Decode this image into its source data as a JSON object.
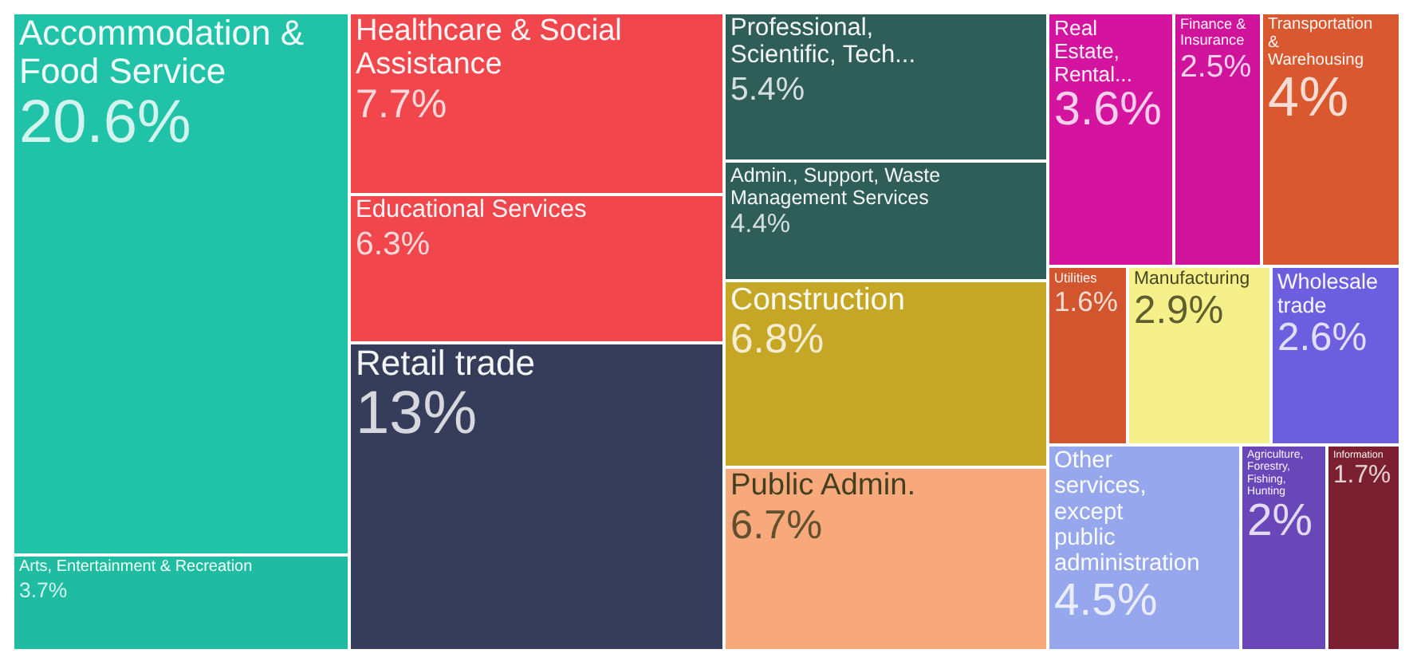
{
  "chart_data": {
    "type": "other",
    "categories": [
      "Accommodation & Food Service",
      "Arts, Entertainment & Recreation",
      "Healthcare & Social Assistance",
      "Educational Services",
      "Retail trade",
      "Professional, Scientific, Tech...",
      "Admin., Support, Waste Management Services",
      "Construction",
      "Public Admin.",
      "Real Estate, Rental...",
      "Finance & Insurance",
      "Transportation & Warehousing",
      "Utilities",
      "Manufacturing",
      "Wholesale trade",
      "Other services, except public administration",
      "Agriculture, Forestry, Fishing, Hunting",
      "Information"
    ],
    "values": [
      20.6,
      3.7,
      7.7,
      6.3,
      13,
      5.4,
      4.4,
      6.8,
      6.7,
      3.6,
      2.5,
      4,
      1.6,
      2.9,
      2.6,
      4.5,
      2,
      1.7
    ],
    "value_labels": [
      "20.6%",
      "3.7%",
      "7.7%",
      "6.3%",
      "13%",
      "5.4%",
      "4.4%",
      "6.8%",
      "6.7%",
      "3.6%",
      "2.5%",
      "4%",
      "1.6%",
      "2.9%",
      "2.6%",
      "4.5%",
      "2%",
      "1.7%"
    ],
    "colors": [
      "#21c3a8",
      "#1fbca2",
      "#f0464c",
      "#f0464c",
      "#363d5a",
      "#2e5e57",
      "#2e5e57",
      "#c6a625",
      "#f7a97c",
      "#d4149f",
      "#cf149b",
      "#d9582f",
      "#d2552d",
      "#f5f08a",
      "#6b5fe0",
      "#97a7ee",
      "#6a47b8",
      "#7a2030"
    ]
  }
}
